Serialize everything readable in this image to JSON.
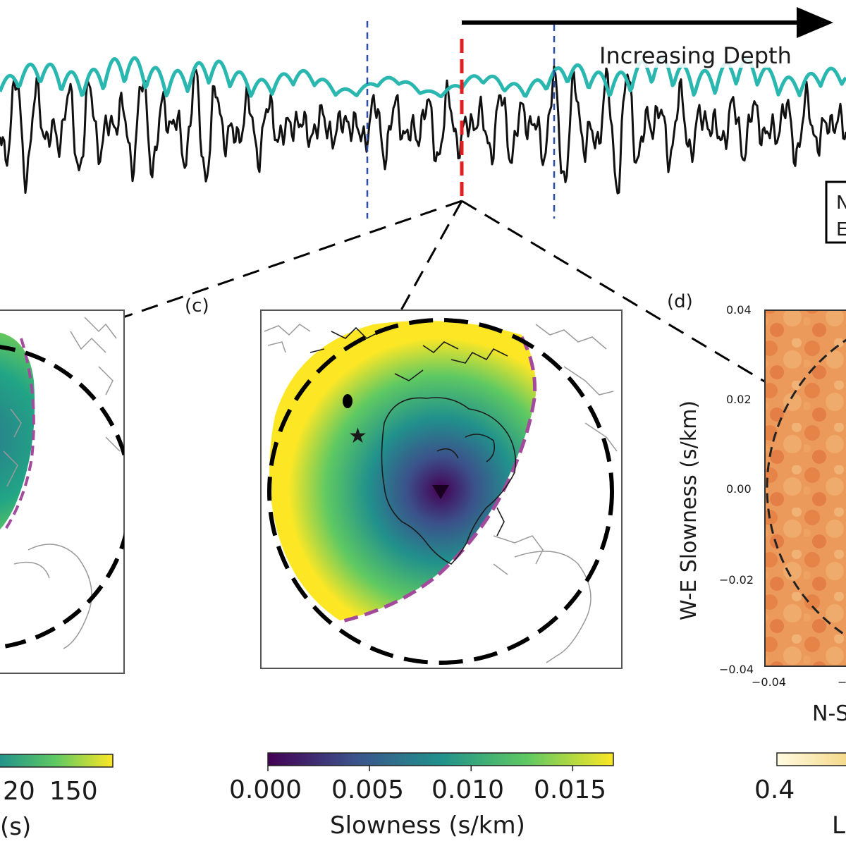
{
  "figure": {
    "arrow_label": "Increasing Depth",
    "legend_box": {
      "line1": "N",
      "line2": "E"
    },
    "panel_c_label": "(c)",
    "panel_d_label": "(d)"
  },
  "left_panel": {
    "colorbar_ticks": [
      "20",
      "150"
    ],
    "colorbar_label": "(s)"
  },
  "center_panel": {
    "colorbar_ticks": [
      "0.000",
      "0.005",
      "0.010",
      "0.015"
    ],
    "colorbar_label": "Slowness (s/km)",
    "colorbar_range": [
      0.0,
      0.017
    ],
    "colormap": [
      "#440154",
      "#31688e",
      "#21918c",
      "#35b779",
      "#fde725"
    ]
  },
  "right_panel": {
    "ylabel": "W-E Slowness (s/km)",
    "xlabel": "N-S",
    "y_ticks": [
      "0.04",
      "0.02",
      "0.00",
      "−0.02",
      "−0.04"
    ],
    "x_ticks": [
      "−0.04",
      "−"
    ],
    "colorbar_ticks": [
      "0.4"
    ],
    "colorbar_label": "L"
  },
  "colors": {
    "trace_black": "#111111",
    "trace_cyan": "#2ab7b0",
    "marker_red": "#e02020",
    "marker_blue": "#2a4fa8",
    "magenta": "#a44a9c",
    "yellow": "#f4e832",
    "heat": "#e8824a"
  }
}
